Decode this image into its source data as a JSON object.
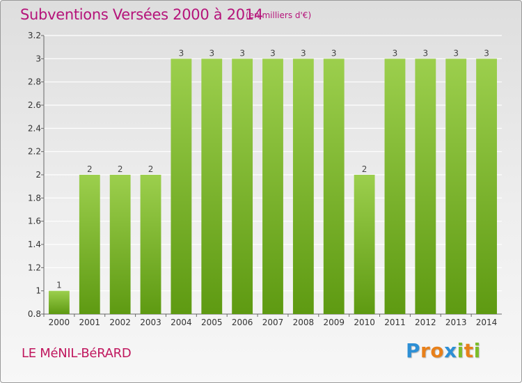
{
  "title": "Subventions Versées 2000 à 2014",
  "subtitle": "(en milliers d'€)",
  "commune": "LE MéNIL-BéRARD",
  "logo": {
    "text": "Proxiti",
    "letters": [
      "P",
      "r",
      "o",
      "x",
      "i",
      "t",
      "i"
    ],
    "colors": [
      "#2d8fd5",
      "#e8801a",
      "#e8801a",
      "#2d8fd5",
      "#7cbd2a",
      "#e8801a",
      "#7cbd2a"
    ]
  },
  "colors": {
    "bar_light": "#9ccf4d",
    "bar_dark": "#5e9a12",
    "title": "#b5137a"
  },
  "chart_data": {
    "type": "bar",
    "categories": [
      "2000",
      "2001",
      "2002",
      "2003",
      "2004",
      "2005",
      "2006",
      "2007",
      "2008",
      "2009",
      "2010",
      "2011",
      "2012",
      "2013",
      "2014"
    ],
    "values": [
      1,
      2,
      2,
      2,
      3,
      3,
      3,
      3,
      3,
      3,
      2,
      3,
      3,
      3,
      3
    ],
    "data_labels": [
      "1",
      "2",
      "2",
      "2",
      "3",
      "3",
      "3",
      "3",
      "3",
      "3",
      "2",
      "3",
      "3",
      "3",
      "3"
    ],
    "ylim": [
      0.8,
      3.2
    ],
    "yticks": [
      0.8,
      1,
      1.2,
      1.4,
      1.6,
      1.8,
      2,
      2.2,
      2.4,
      2.6,
      2.8,
      3,
      3.2
    ],
    "ytick_labels": [
      "0.8",
      "1",
      "1.2",
      "1.4",
      "1.6",
      "1.8",
      "2",
      "2.2",
      "2.4",
      "2.6",
      "2.8",
      "3",
      "3.2"
    ],
    "grid": true,
    "title": "Subventions Versées 2000 à 2014",
    "xlabel": "",
    "ylabel": ""
  }
}
